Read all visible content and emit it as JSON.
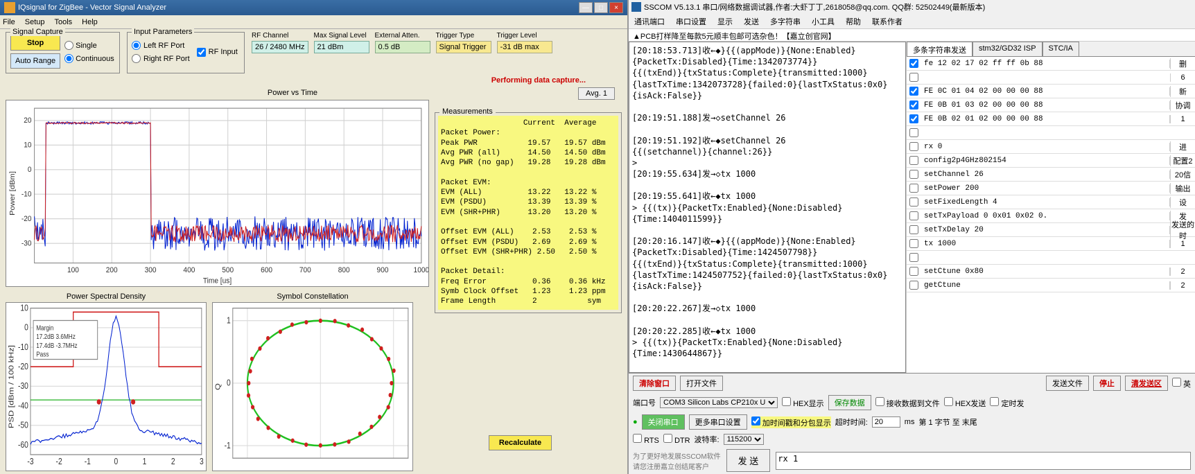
{
  "left": {
    "title": "IQsignal for ZigBee - Vector Signal Analyzer",
    "menu": [
      "File",
      "Setup",
      "Tools",
      "Help"
    ],
    "sigCapture": {
      "legend": "Signal Capture",
      "stop": "Stop",
      "auto": "Auto Range",
      "single": "Single",
      "continuous": "Continuous"
    },
    "inputParams": {
      "legend": "Input Parameters",
      "leftRF": "Left RF Port",
      "rightRF": "Right RF Port",
      "rfInput": "RF Input"
    },
    "params": {
      "rfChannel": {
        "label": "RF Channel",
        "value": "26 / 2480 MHz"
      },
      "maxSignal": {
        "label": "Max Signal Level",
        "value": "21 dBm"
      },
      "extAtten": {
        "label": "External Atten.",
        "value": "0.5 dB"
      },
      "trigType": {
        "label": "Trigger Type",
        "value": "Signal Trigger"
      },
      "trigLevel": {
        "label": "Trigger Level",
        "value": "-31 dB max"
      }
    },
    "status": "Performing data capture...",
    "avgBtn": "Avg. 1",
    "pvt": {
      "title": "Power vs Time",
      "ylabel": "Power [dBm]",
      "xlabel": "Time [us]",
      "ylim": [
        -38,
        25
      ],
      "yticks": [
        -30,
        -20,
        -10,
        0,
        10,
        20
      ],
      "xlim": [
        0,
        1000
      ],
      "xticks": [
        100,
        200,
        300,
        400,
        500,
        600,
        700,
        800,
        900,
        1000
      ],
      "burst_end": 300,
      "burst_level": 19,
      "noise_mean": -26,
      "noise_range": 10,
      "colors": {
        "blue": "#0020d0",
        "red": "#d02020",
        "grid": "#d0d0d0"
      }
    },
    "measLegend": "Measurements",
    "measHeader": "                  Current  Average",
    "measLines": [
      "Packet Power:",
      "Peak PWR           19.57   19.57 dBm",
      "Avg PWR (all)      14.50   14.50 dBm",
      "Avg PWR (no gap)   19.28   19.28 dBm",
      "",
      "Packet EVM:",
      "EVM (ALL)          13.22   13.22 %",
      "EVM (PSDU)         13.39   13.39 %",
      "EVM (SHR+PHR)      13.20   13.20 %",
      "",
      "Offset EVM (ALL)    2.53    2.53 %",
      "Offset EVM (PSDU)   2.69    2.69 %",
      "Offset EVM (SHR+PHR) 2.50   2.50 %",
      "",
      "Packet Detail:",
      "Freq Error          0.36    0.36 kHz",
      "Symb Clock Offset   1.23    1.23 ppm",
      "Frame Length        2           sym"
    ],
    "psd": {
      "title": "Power Spectral Density",
      "ylabel": "PSD [dBm / 100 kHz]",
      "ylim": [
        -65,
        10
      ],
      "yticks": [
        -60,
        -50,
        -40,
        -30,
        -20,
        -10,
        0,
        10
      ],
      "xlim": [
        -3,
        3
      ],
      "xticks": [
        -3,
        -2,
        -1,
        0,
        1,
        2,
        3
      ],
      "annot": [
        "Margin",
        "17.2dB  3.6MHz",
        "17.4dB  -3.7MHz",
        "Pass"
      ],
      "mask_color": "#d02020",
      "trace_color": "#0020d0",
      "ref_color": "#20b020"
    },
    "const": {
      "title": "Symbol Constellation",
      "ylabel": "Q",
      "lim": [
        -1.2,
        1.2
      ],
      "ticks": [
        -1,
        0,
        1
      ],
      "circle_color": "#20c020",
      "point_color": "#d02020"
    },
    "recalc": "Recalculate"
  },
  "right": {
    "title": "SSCOM V5.13.1 串口/网络数据调试器,作者:大虾丁丁,2618058@qq.com. QQ群: 52502449(最新版本)",
    "menu": [
      "通讯端口",
      "串口设置",
      "显示",
      "发送",
      "多字符串",
      "小工具",
      "帮助",
      "联系作者"
    ],
    "banner": "▲PCB打样降至每款5元顺丰包邮可选杂色！【嘉立创官网】",
    "log": "[20:18:53.713]收←◆}{{(appMode)}{None:Enabled}\n{PacketTx:Disabled}{Time:1342073774}}\n{{(txEnd)}{txStatus:Complete}{transmitted:1000}\n{lastTxTime:1342073728}{failed:0}{lastTxStatus:0x0}\n{isAck:False}}\n\n[20:19:51.188]发→◇setChannel 26\n\n[20:19:51.192]收←◆setChannel 26\n{{(setchannel)}{channel:26}}\n>\n[20:19:55.634]发→◇tx 1000\n\n[20:19:55.641]收←◆tx 1000\n> {{(tx)}{PacketTx:Enabled}{None:Disabled}\n{Time:1404011599}}\n\n[20:20:16.147]收←◆}{{(appMode)}{None:Enabled}\n{PacketTx:Disabled}{Time:1424507798}}\n{{(txEnd)}{txStatus:Complete}{transmitted:1000}\n{lastTxTime:1424507752}{failed:0}{lastTxStatus:0x0}\n{isAck:False}}\n\n[20:20:22.267]发→◇tx 1000\n\n[20:20:22.285]收←◆tx 1000\n> {{(tx)}{PacketTx:Enabled}{None:Disabled}\n{Time:1430644867}}\n",
    "tabs": [
      "多条字符串发送",
      "stm32/GD32 ISP",
      "STC/IA"
    ],
    "items": [
      {
        "c": true,
        "t": "fe 12 02 17 02 ff ff 0b 88",
        "b": "删"
      },
      {
        "c": false,
        "t": "",
        "b": "6"
      },
      {
        "c": true,
        "t": "FE 0C 01 04 02 00 00 00 88",
        "b": "新"
      },
      {
        "c": true,
        "t": "FE 0B 01 03 02 00 00 00 88",
        "b": "协调"
      },
      {
        "c": true,
        "t": "FE 0B 02 01 02 00 00 00 88",
        "b": "1"
      },
      {
        "c": false,
        "t": "",
        "b": ""
      },
      {
        "c": false,
        "t": "rx 0",
        "b": "进"
      },
      {
        "c": false,
        "t": "config2p4GHz802154",
        "b": "配置2"
      },
      {
        "c": false,
        "t": "setChannel 26",
        "b": "20信"
      },
      {
        "c": false,
        "t": "setPower 200",
        "b": "输出"
      },
      {
        "c": false,
        "t": "setFixedLength 4",
        "b": "设"
      },
      {
        "c": false,
        "t": "setTxPayload 0  0x01 0x02 0.",
        "b": "发"
      },
      {
        "c": false,
        "t": "setTxDelay 20",
        "b": "发送的时"
      },
      {
        "c": false,
        "t": "tx 1000",
        "b": "1"
      },
      {
        "c": false,
        "t": "",
        "b": ""
      },
      {
        "c": false,
        "t": "setCtune 0x80",
        "b": "2"
      },
      {
        "c": false,
        "t": "getCtune",
        "b": "2"
      }
    ],
    "btns": {
      "clear": "清除窗口",
      "open": "打开文件",
      "sendFile": "发送文件",
      "stop": "停止",
      "clearSend": "清发送区",
      "portLabel": "端口号",
      "port": "COM3 Silicon Labs CP210x U",
      "hexDisp": "HEX显示",
      "saveData": "保存数据",
      "recvToFile": "接收数据到文件",
      "hexSend": "HEX发送",
      "timedSend": "定时发",
      "closePort": "关闭串口",
      "more": "更多串口设置",
      "timestamp": "加时间戳和分包显示",
      "timeout": "超时时间:",
      "timeoutVal": "20",
      "ms": "ms",
      "byteLabel": "第 1 字节 至 末尾",
      "rts": "RTS",
      "dtr": "DTR",
      "baud": "波特率:",
      "baudVal": "115200",
      "sendText": "rx 1",
      "send": "发 送",
      "footer": "为了更好地发展SSCOM软件\n请您注册嘉立创结尾客户"
    }
  }
}
